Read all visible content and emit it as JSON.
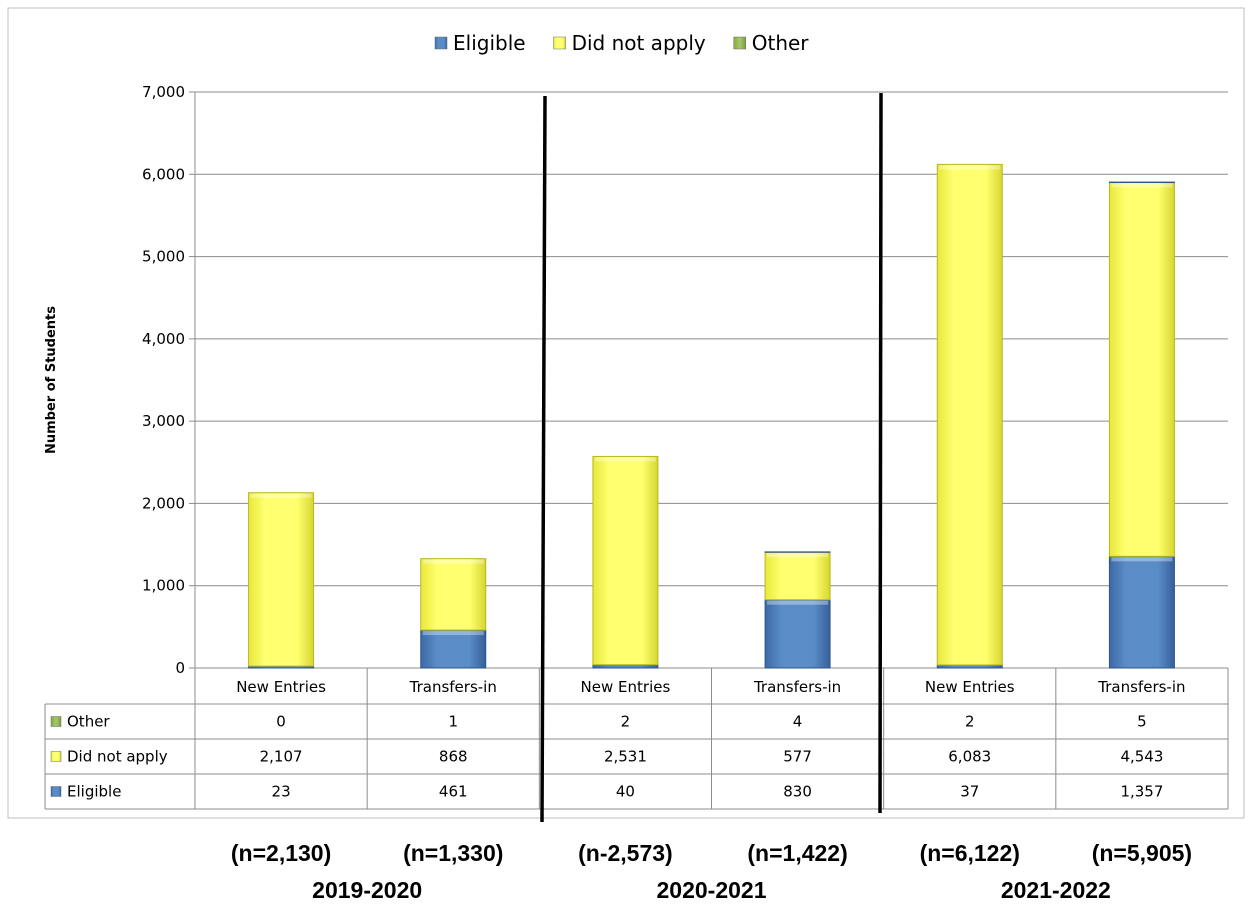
{
  "chart_data": {
    "type": "bar",
    "stacked": true,
    "ylabel": "Number of Students",
    "ylim": [
      0,
      7000
    ],
    "yticks": [
      "0",
      "1,000",
      "2,000",
      "3,000",
      "4,000",
      "5,000",
      "6,000",
      "7,000"
    ],
    "categories": [
      "New Entries",
      "Transfers-in",
      "New Entries",
      "Transfers-in",
      "New Entries",
      "Transfers-in"
    ],
    "series": [
      {
        "name": "Eligible",
        "color": "#4f81bd",
        "values": [
          23,
          461,
          40,
          830,
          37,
          1357
        ],
        "labels": [
          "23",
          "461",
          "40",
          "830",
          "37",
          "1,357"
        ]
      },
      {
        "name": "Did not apply",
        "color": "#ffff66",
        "values": [
          2107,
          868,
          2531,
          577,
          6083,
          4543
        ],
        "labels": [
          "2,107",
          "868",
          "2,531",
          "577",
          "6,083",
          "4,543"
        ]
      },
      {
        "name": "Other",
        "color": "#9bbb59",
        "values": [
          0,
          1,
          2,
          4,
          2,
          5
        ],
        "labels": [
          "0",
          "1",
          "2",
          "4",
          "2",
          "5"
        ]
      }
    ],
    "legend": {
      "position": "top",
      "order": [
        "Eligible",
        "Did not apply",
        "Other"
      ]
    },
    "table_row_order": [
      "Other",
      "Did not apply",
      "Eligible"
    ],
    "grid": true,
    "totals": [
      "(n=2,130)",
      "(n=1,330)",
      "(n-2,573)",
      "(n=1,422)",
      "(n=6,122)",
      "(n=5,905)"
    ],
    "groups": [
      "2019-2020",
      "2020-2021",
      "2021-2022"
    ]
  }
}
